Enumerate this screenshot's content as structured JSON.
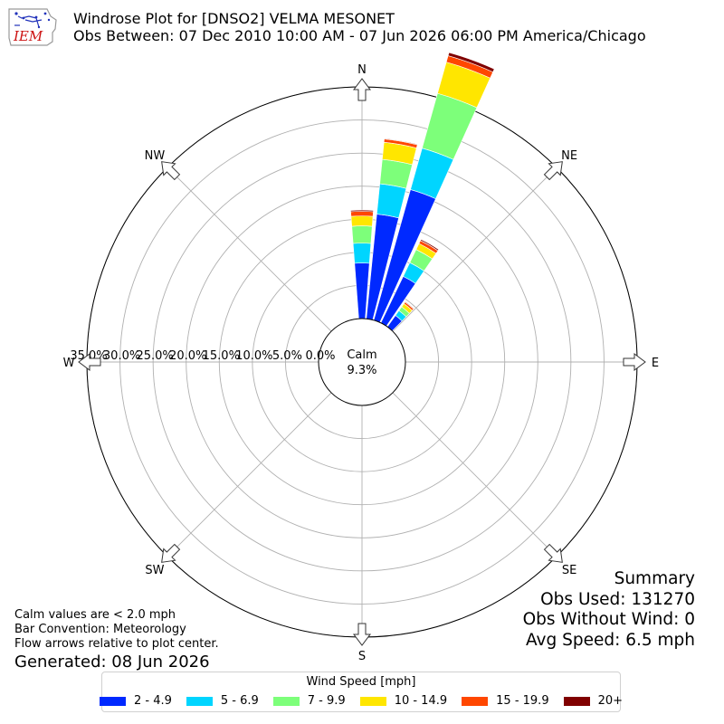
{
  "header": {
    "logo_text": "IEM",
    "title_line1": "Windrose Plot for [DNSO2] VELMA MESONET",
    "title_line2": "Obs Between: 07 Dec 2010 10:00 AM - 07 Jun 2026 06:00 PM America/Chicago"
  },
  "calm": {
    "label": "Calm",
    "value": "9.3%"
  },
  "summary": {
    "heading": "Summary",
    "obs_used": "Obs Used: 131270",
    "obs_without_wind": "Obs Without Wind: 0",
    "avg_speed": "Avg Speed: 6.5 mph"
  },
  "notes": {
    "calm_note": "Calm values are < 2.0 mph",
    "bar_convention": "Bar Convention: Meteorology",
    "flow_arrows": "Flow arrows relative to plot center.",
    "generated": "Generated: 08 Jun 2026"
  },
  "legend": {
    "title": "Wind Speed [mph]",
    "items": [
      {
        "label": "2 - 4.9",
        "color": "#0029ff"
      },
      {
        "label": "5 - 6.9",
        "color": "#00d5ff"
      },
      {
        "label": "7 - 9.9",
        "color": "#7dff7a"
      },
      {
        "label": "10 - 14.9",
        "color": "#ffe600"
      },
      {
        "label": "15 - 19.9",
        "color": "#ff4700"
      },
      {
        "label": "20+",
        "color": "#800000"
      }
    ]
  },
  "chart_data": {
    "type": "windrose",
    "calm_percent": 9.3,
    "directions": [
      "N",
      "NE",
      "E",
      "SE",
      "S",
      "SW",
      "W",
      "NW"
    ],
    "radial_tick_labels": [
      "0.0%",
      "5.0%",
      "10.0%",
      "15.0%",
      "20.0%",
      "25.0%",
      "30.0%",
      "35.0%"
    ],
    "radial_range_percent": [
      0,
      35
    ],
    "grid": true,
    "speed_bins": [
      "2 - 4.9",
      "5 - 6.9",
      "7 - 9.9",
      "10 - 14.9",
      "15 - 19.9",
      "20+"
    ],
    "bars": [
      {
        "direction_deg": 0,
        "cumulative_percent": [
          8.4,
          11.4,
          14.0,
          15.5,
          16.2,
          16.4
        ]
      },
      {
        "direction_deg": 10,
        "cumulative_percent": [
          15.9,
          20.5,
          24.2,
          26.8,
          27.3,
          27.4
        ]
      },
      {
        "direction_deg": 20,
        "cumulative_percent": [
          20.5,
          27.0,
          35.6,
          40.5,
          41.5,
          42.0
        ]
      },
      {
        "direction_deg": 30,
        "cumulative_percent": [
          7.8,
          10.1,
          12.3,
          13.3,
          13.8,
          14.0
        ]
      },
      {
        "direction_deg": 40,
        "cumulative_percent": [
          2.1,
          3.0,
          3.7,
          4.3,
          4.6,
          4.7
        ]
      }
    ]
  }
}
